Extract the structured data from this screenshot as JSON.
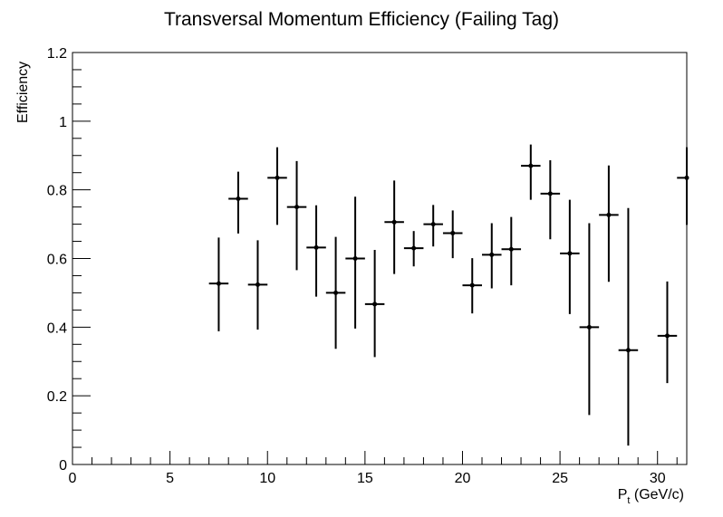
{
  "chart_data": {
    "type": "scatter",
    "title": "Transversal Momentum Efficiency (Failing Tag)",
    "xlabel_main": "P",
    "xlabel_sub": "t",
    "xlabel_unit": " (GeV/c)",
    "ylabel": "Efficiency",
    "xlim": [
      0,
      31.5
    ],
    "ylim": [
      0,
      1.2
    ],
    "x_ticks": [
      0,
      5,
      10,
      15,
      20,
      25,
      30
    ],
    "y_ticks": [
      0,
      0.2,
      0.4,
      0.6,
      0.8,
      1,
      1.2
    ],
    "x_tick_labels": [
      "0",
      "5",
      "10",
      "15",
      "20",
      "25",
      "30"
    ],
    "y_tick_labels": [
      "0",
      "0.2",
      "0.4",
      "0.6",
      "0.8",
      "1",
      "1.2"
    ],
    "grid": false,
    "points": [
      {
        "x": 7.5,
        "xerr": 0.5,
        "y": 0.527,
        "ylo": 0.388,
        "yhi": 0.661
      },
      {
        "x": 8.5,
        "xerr": 0.5,
        "y": 0.774,
        "ylo": 0.673,
        "yhi": 0.853
      },
      {
        "x": 9.5,
        "xerr": 0.5,
        "y": 0.524,
        "ylo": 0.393,
        "yhi": 0.653
      },
      {
        "x": 10.5,
        "xerr": 0.5,
        "y": 0.835,
        "ylo": 0.698,
        "yhi": 0.924
      },
      {
        "x": 11.5,
        "xerr": 0.5,
        "y": 0.75,
        "ylo": 0.566,
        "yhi": 0.884
      },
      {
        "x": 12.5,
        "xerr": 0.5,
        "y": 0.632,
        "ylo": 0.489,
        "yhi": 0.755
      },
      {
        "x": 13.5,
        "xerr": 0.5,
        "y": 0.5,
        "ylo": 0.337,
        "yhi": 0.663
      },
      {
        "x": 14.5,
        "xerr": 0.5,
        "y": 0.6,
        "ylo": 0.396,
        "yhi": 0.78
      },
      {
        "x": 15.5,
        "xerr": 0.5,
        "y": 0.467,
        "ylo": 0.313,
        "yhi": 0.625
      },
      {
        "x": 16.5,
        "xerr": 0.5,
        "y": 0.706,
        "ylo": 0.555,
        "yhi": 0.827
      },
      {
        "x": 17.5,
        "xerr": 0.5,
        "y": 0.63,
        "ylo": 0.577,
        "yhi": 0.68
      },
      {
        "x": 18.5,
        "xerr": 0.5,
        "y": 0.7,
        "ylo": 0.635,
        "yhi": 0.756
      },
      {
        "x": 19.5,
        "xerr": 0.5,
        "y": 0.674,
        "ylo": 0.601,
        "yhi": 0.74
      },
      {
        "x": 20.5,
        "xerr": 0.5,
        "y": 0.522,
        "ylo": 0.44,
        "yhi": 0.601
      },
      {
        "x": 21.5,
        "xerr": 0.5,
        "y": 0.611,
        "ylo": 0.513,
        "yhi": 0.703
      },
      {
        "x": 22.5,
        "xerr": 0.5,
        "y": 0.627,
        "ylo": 0.522,
        "yhi": 0.721
      },
      {
        "x": 23.5,
        "xerr": 0.5,
        "y": 0.87,
        "ylo": 0.771,
        "yhi": 0.932
      },
      {
        "x": 24.5,
        "xerr": 0.5,
        "y": 0.789,
        "ylo": 0.656,
        "yhi": 0.886
      },
      {
        "x": 25.5,
        "xerr": 0.5,
        "y": 0.615,
        "ylo": 0.438,
        "yhi": 0.771
      },
      {
        "x": 26.5,
        "xerr": 0.5,
        "y": 0.4,
        "ylo": 0.144,
        "yhi": 0.703
      },
      {
        "x": 27.5,
        "xerr": 0.5,
        "y": 0.727,
        "ylo": 0.532,
        "yhi": 0.871
      },
      {
        "x": 28.5,
        "xerr": 0.5,
        "y": 0.333,
        "ylo": 0.055,
        "yhi": 0.747
      },
      {
        "x": 30.5,
        "xerr": 0.5,
        "y": 0.375,
        "ylo": 0.237,
        "yhi": 0.533
      },
      {
        "x": 31.5,
        "xerr": 0.5,
        "y": 0.835,
        "ylo": 0.698,
        "yhi": 0.924
      }
    ]
  }
}
